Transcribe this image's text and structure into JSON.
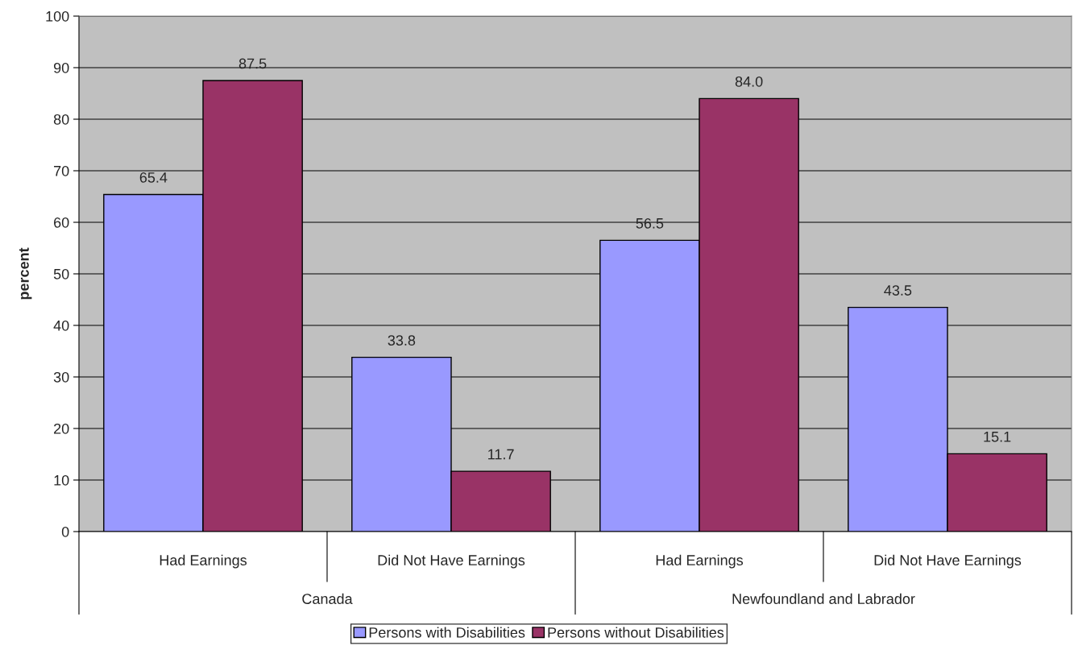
{
  "chart_data": {
    "type": "bar",
    "ylabel": "percent",
    "categories": [
      "Had Earnings",
      "Did Not Have Earnings",
      "Had Earnings",
      "Did Not Have Earnings"
    ],
    "annotations": [
      "Canada",
      "Newfoundland and Labrador"
    ],
    "series": [
      {
        "name": "Persons with Disabilities",
        "color": "#9999ff",
        "values": [
          65.4,
          33.8,
          56.5,
          43.5
        ],
        "value_labels": [
          "65.4",
          "33.8",
          "56.5",
          "43.5"
        ]
      },
      {
        "name": "Persons without Disabilities",
        "color": "#993366",
        "values": [
          87.5,
          11.7,
          84.0,
          15.1
        ],
        "value_labels": [
          "87.5",
          "11.7",
          "84.0",
          "15.1"
        ]
      }
    ],
    "ylim": [
      0,
      100
    ],
    "yticks": [
      0,
      10,
      20,
      30,
      40,
      50,
      60,
      70,
      80,
      90,
      100
    ],
    "grid": "y",
    "legend": "bottom"
  }
}
